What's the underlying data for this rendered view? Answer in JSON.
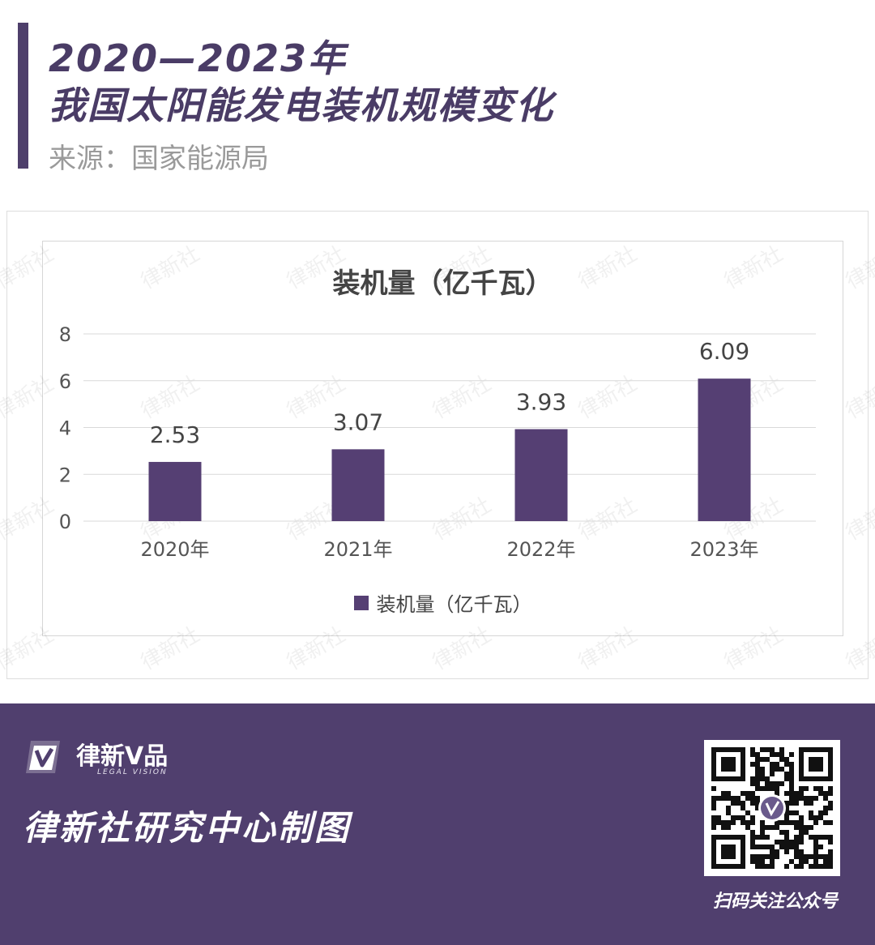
{
  "header": {
    "title_line1": "2020—2023年",
    "title_line2": "我国太阳能发电装机规模变化",
    "source": "来源：国家能源局"
  },
  "watermark_text": "律新社",
  "chart_data": {
    "type": "bar",
    "title": "装机量（亿千瓦）",
    "categories": [
      "2020年",
      "2021年",
      "2022年",
      "2023年"
    ],
    "series": [
      {
        "name": "装机量（亿千瓦）",
        "values": [
          2.53,
          3.07,
          3.93,
          6.09
        ],
        "color": "#553f73"
      }
    ],
    "data_labels": [
      "2.53",
      "3.07",
      "3.93",
      "6.09"
    ],
    "ylim": [
      0,
      8
    ],
    "yticks": [
      0,
      2,
      4,
      6,
      8
    ],
    "grid": true,
    "legend_position": "bottom"
  },
  "footer": {
    "brand_name": "律新V品",
    "brand_sub": "LEGAL VISION",
    "credit": "律新社研究中心制图",
    "qr_caption": "扫码关注公众号",
    "background_color": "#503f6e"
  }
}
